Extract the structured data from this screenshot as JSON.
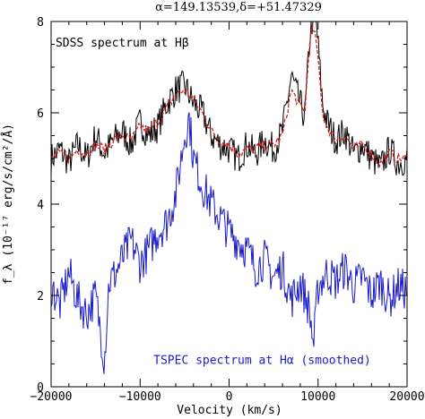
{
  "chart_data": {
    "type": "line",
    "title": "α=149.13539,δ=+51.47329",
    "xlabel": "Velocity (km/s)",
    "ylabel": "f_λ (10⁻¹⁷ erg/s/cm²/Å)",
    "xlim": [
      -20000,
      20000
    ],
    "ylim": [
      0,
      8
    ],
    "x_ticks": [
      -20000,
      -10000,
      0,
      10000,
      20000
    ],
    "x_tick_labels": [
      "−20000",
      "−10000",
      "0",
      "10000",
      "20000"
    ],
    "y_ticks": [
      0,
      2,
      4,
      6,
      8
    ],
    "y_tick_labels": [
      "0",
      "2",
      "4",
      "6",
      "8"
    ],
    "grid": false,
    "annotations": [
      {
        "text": "SDSS spectrum at Hβ",
        "color": "#000000",
        "at": [
          -19500,
          7.45
        ]
      },
      {
        "text": "TSPEC spectrum at Hα (smoothed)",
        "color": "#1a1acc",
        "at": [
          -8500,
          0.5
        ]
      }
    ],
    "series": [
      {
        "color": "#000000",
        "style": "solid",
        "x": [
          -20000,
          -19000,
          -18000,
          -17000,
          -16000,
          -15000,
          -14000,
          -13000,
          -12000,
          -11000,
          -10000,
          -9000,
          -8000,
          -7000,
          -6000,
          -5000,
          -4000,
          -3000,
          -2000,
          -1000,
          0,
          1000,
          2000,
          3000,
          4000,
          5000,
          6000,
          7000,
          7800,
          8500,
          9200,
          9800,
          10500,
          11000,
          12000,
          13000,
          14000,
          15000,
          16000,
          17000,
          18000,
          19000,
          20000
        ],
        "y": [
          5.0,
          5.2,
          4.9,
          5.3,
          5.0,
          5.5,
          5.1,
          5.4,
          5.6,
          5.3,
          5.8,
          5.5,
          5.7,
          6.2,
          6.5,
          6.6,
          6.2,
          6.0,
          5.5,
          5.3,
          5.2,
          5.0,
          5.3,
          5.1,
          5.4,
          5.2,
          5.6,
          6.8,
          6.3,
          5.9,
          8.0,
          8.0,
          6.2,
          5.8,
          5.4,
          5.6,
          5.1,
          5.3,
          5.0,
          4.8,
          5.2,
          4.9,
          5.0
        ]
      },
      {
        "color": "#d42020",
        "style": "dashed",
        "x": [
          -20000,
          -19000,
          -18000,
          -17000,
          -16000,
          -15000,
          -14000,
          -13000,
          -12000,
          -11000,
          -10000,
          -9000,
          -8000,
          -7000,
          -6000,
          -5000,
          -4000,
          -3000,
          -2000,
          -1000,
          0,
          1000,
          2000,
          3000,
          4000,
          5000,
          6000,
          7000,
          7800,
          8500,
          9200,
          9800,
          10500,
          11000,
          12000,
          13000,
          14000,
          15000,
          16000,
          17000,
          18000,
          19000,
          20000
        ],
        "y": [
          5.0,
          5.1,
          5.0,
          5.2,
          5.1,
          5.3,
          5.2,
          5.4,
          5.5,
          5.4,
          5.7,
          5.6,
          5.8,
          6.1,
          6.4,
          6.5,
          6.3,
          6.0,
          5.6,
          5.4,
          5.3,
          5.1,
          5.2,
          5.2,
          5.3,
          5.3,
          5.5,
          6.5,
          6.2,
          6.0,
          7.9,
          7.6,
          6.0,
          5.7,
          5.4,
          5.5,
          5.2,
          5.3,
          5.1,
          4.9,
          5.1,
          5.0,
          5.0
        ]
      },
      {
        "color": "#1a1acc",
        "style": "solid",
        "x": [
          -20000,
          -19000,
          -18000,
          -17000,
          -16000,
          -15000,
          -14000,
          -13500,
          -13000,
          -12000,
          -11000,
          -10000,
          -9000,
          -8000,
          -7000,
          -6000,
          -5000,
          -4500,
          -4000,
          -3000,
          -2000,
          -1000,
          0,
          1000,
          2000,
          3000,
          4000,
          5000,
          6000,
          7000,
          8000,
          9000,
          9500,
          10000,
          11000,
          12000,
          13000,
          14000,
          15000,
          16000,
          17000,
          18000,
          19000,
          20000
        ],
        "y": [
          2.2,
          1.8,
          2.5,
          1.9,
          1.6,
          2.0,
          0.6,
          2.3,
          2.4,
          2.8,
          3.2,
          2.7,
          3.0,
          3.4,
          3.6,
          4.2,
          5.5,
          5.9,
          5.0,
          4.4,
          4.0,
          3.7,
          3.4,
          3.2,
          3.0,
          2.6,
          2.8,
          2.4,
          2.6,
          1.9,
          2.3,
          1.7,
          0.9,
          2.2,
          2.5,
          2.3,
          2.6,
          2.2,
          2.4,
          2.0,
          2.3,
          1.9,
          2.2,
          2.1
        ]
      }
    ]
  }
}
